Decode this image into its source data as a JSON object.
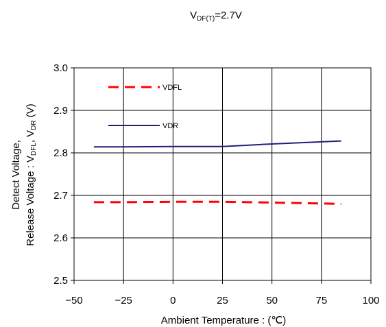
{
  "chart_data": {
    "type": "line",
    "title": {
      "prefix": "V",
      "sub": "DF(T)",
      "suffix": "=2.7V"
    },
    "xlabel": "Ambient Temperature : (℃)",
    "ylabel": {
      "line1": "Detect Voltage,",
      "line2_prefix": "Release Voltage : V",
      "line2_sub1": "DFL",
      "line2_mid": ", V",
      "line2_sub2": "DR",
      "line2_suffix": " (V)"
    },
    "xlim": [
      -50,
      100
    ],
    "ylim": [
      2.5,
      3.0
    ],
    "xticks": [
      -50,
      -25,
      0,
      25,
      50,
      75,
      100
    ],
    "xtick_labels": [
      "−50",
      "−25",
      "0",
      "25",
      "50",
      "75",
      "100"
    ],
    "yticks": [
      2.5,
      2.6,
      2.7,
      2.8,
      2.9,
      3.0
    ],
    "ytick_labels": [
      "2.5",
      "2.6",
      "2.7",
      "2.8",
      "2.9",
      "3.0"
    ],
    "grid": true,
    "legend_placement": "top-left",
    "series": [
      {
        "name": "VDFL",
        "color": "#ff0000",
        "dash": true,
        "x": [
          -40,
          -25,
          0,
          25,
          50,
          75,
          85
        ],
        "y": [
          2.684,
          2.684,
          2.685,
          2.685,
          2.683,
          2.681,
          2.68
        ]
      },
      {
        "name": "VDR",
        "color": "#1f1f7a",
        "dash": false,
        "x": [
          -40,
          -25,
          0,
          25,
          50,
          75,
          85
        ],
        "y": [
          2.814,
          2.814,
          2.815,
          2.815,
          2.821,
          2.826,
          2.828
        ]
      }
    ]
  }
}
